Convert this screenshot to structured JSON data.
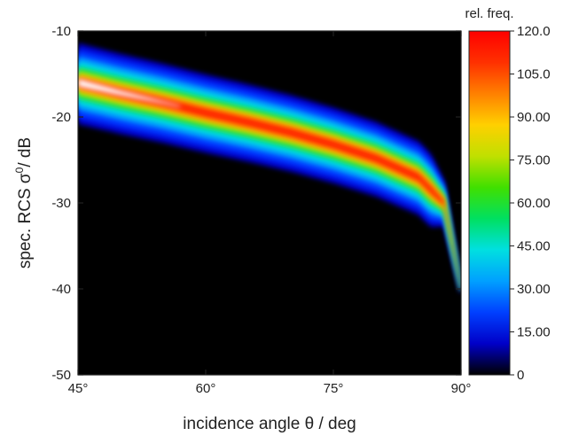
{
  "chart_data": {
    "type": "heatmap",
    "xlabel": "incidence angle θ / deg",
    "ylabel_main": "spec. RCS σ",
    "ylabel_sup": "0",
    "ylabel_suffix": "/ dB",
    "xlim": [
      45,
      90
    ],
    "ylim": [
      -50,
      -10
    ],
    "x_ticks": [
      {
        "value": 45,
        "label": "45°"
      },
      {
        "value": 60,
        "label": "60°"
      },
      {
        "value": 75,
        "label": "75°"
      },
      {
        "value": 90,
        "label": "90°"
      }
    ],
    "y_ticks": [
      {
        "value": -10,
        "label": "-10"
      },
      {
        "value": -20,
        "label": "-20"
      },
      {
        "value": -30,
        "label": "-30"
      },
      {
        "value": -40,
        "label": "-40"
      },
      {
        "value": -50,
        "label": "-50"
      }
    ],
    "ridge": {
      "description_points": [
        {
          "theta": 45,
          "sigma": -16.0
        },
        {
          "theta": 50,
          "sigma": -17.2
        },
        {
          "theta": 55,
          "sigma": -18.3
        },
        {
          "theta": 60,
          "sigma": -19.5
        },
        {
          "theta": 65,
          "sigma": -20.6
        },
        {
          "theta": 70,
          "sigma": -21.8
        },
        {
          "theta": 75,
          "sigma": -23.2
        },
        {
          "theta": 80,
          "sigma": -24.8
        },
        {
          "theta": 85,
          "sigma": -27.0
        },
        {
          "theta": 88,
          "sigma": -30.0
        },
        {
          "theta": 90,
          "sigma": -40.0
        }
      ]
    },
    "background_color": "#000000",
    "colorbar": {
      "title": "rel. freq.",
      "range": [
        0,
        120
      ],
      "ticks": [
        {
          "value": 120,
          "label": "120.0"
        },
        {
          "value": 105,
          "label": "105.0"
        },
        {
          "value": 90,
          "label": "90.00"
        },
        {
          "value": 75,
          "label": "75.00"
        },
        {
          "value": 60,
          "label": "60.00"
        },
        {
          "value": 45,
          "label": "45.00"
        },
        {
          "value": 30,
          "label": "30.00"
        },
        {
          "value": 15,
          "label": "15.00"
        },
        {
          "value": 0,
          "label": "0"
        }
      ],
      "colors": [
        "#000000",
        "#0000c8",
        "#0040ff",
        "#00a0ff",
        "#00e0e0",
        "#00e060",
        "#40e000",
        "#c0e000",
        "#ffd000",
        "#ff8000",
        "#ff3000",
        "#ff0000"
      ]
    }
  }
}
